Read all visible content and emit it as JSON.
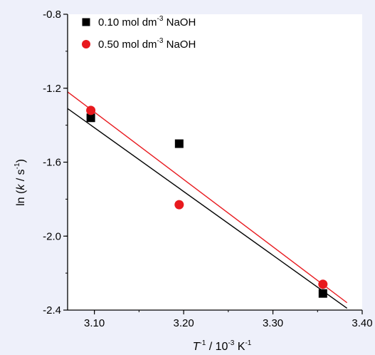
{
  "chart_data": {
    "type": "scatter",
    "xlim": [
      3.07,
      3.4
    ],
    "ylim": [
      -2.4,
      -0.8
    ],
    "x_ticks": [
      3.1,
      3.2,
      3.3,
      3.4
    ],
    "x_tick_labels": [
      "3.10",
      "3.20",
      "3.30",
      "3.40"
    ],
    "y_ticks": [
      -0.8,
      -1.2,
      -1.6,
      -2.0,
      -2.4
    ],
    "y_tick_labels": [
      "-0.8",
      "-1.2",
      "-1.6",
      "-2.0",
      "-2.4"
    ],
    "x_minor_step": 0.05,
    "y_minor_step": 0.2,
    "xlabel": {
      "italic": "T",
      "sup1": "-1",
      "mid": " / 10",
      "sup2": "-3",
      "end": " K",
      "sup3": "-1"
    },
    "ylabel": {
      "pre": "ln (",
      "italic": "k",
      "mid": " / s",
      "sup": "-1",
      "end": ")"
    },
    "legend_position": "top-left",
    "series": [
      {
        "name": "0.10 mol dm-3 NaOH",
        "legend": {
          "pre": "0.10 mol dm",
          "sup": "-3",
          "post": " NaOH"
        },
        "marker": "square",
        "color": "#000000",
        "x": [
          3.096,
          3.195,
          3.356
        ],
        "y": [
          -1.36,
          -1.5,
          -2.31
        ],
        "fit": {
          "x": [
            3.07,
            3.383
          ],
          "y": [
            -1.31,
            -2.39
          ]
        }
      },
      {
        "name": "0.50 mol dm-3 NaOH",
        "legend": {
          "pre": "0.50 mol dm",
          "sup": "-3",
          "post": " NaOH"
        },
        "marker": "circle",
        "color": "#e8191e",
        "x": [
          3.096,
          3.195,
          3.356
        ],
        "y": [
          -1.32,
          -1.83,
          -2.26
        ],
        "fit": {
          "x": [
            3.07,
            3.383
          ],
          "y": [
            -1.22,
            -2.36
          ]
        }
      }
    ]
  }
}
